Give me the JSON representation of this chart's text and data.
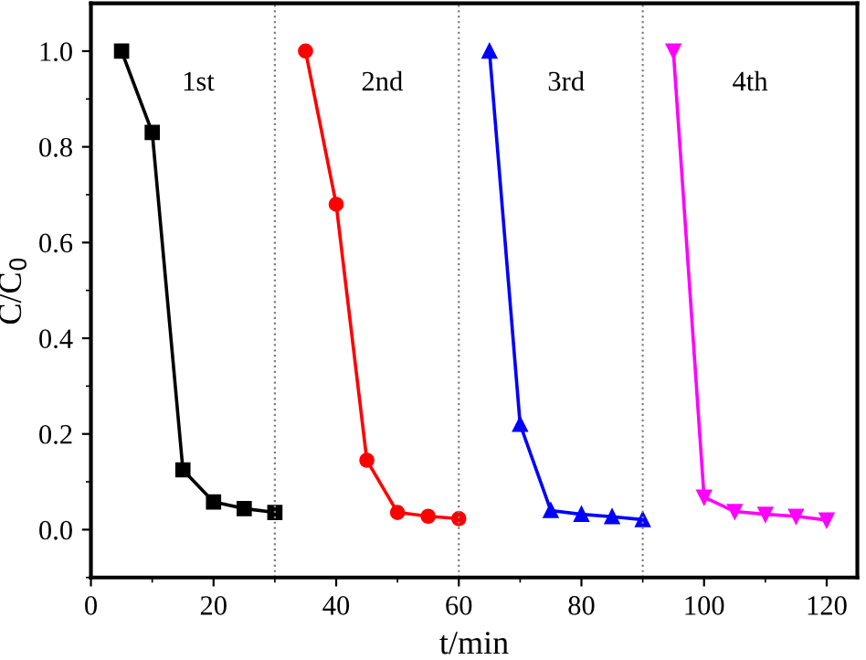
{
  "chart_data": {
    "type": "line",
    "xlabel": "t/min",
    "ylabel": "C/C$_{0}$",
    "xlim": [
      0,
      125
    ],
    "xticks": [
      0,
      20,
      40,
      60,
      80,
      100,
      120
    ],
    "ylim": [
      -0.1,
      1.1
    ],
    "yticks": [
      {
        "value": 0,
        "label": "0.0"
      },
      0.2,
      0.4,
      0.6,
      0.8,
      {
        "value": 1,
        "label": "1.0"
      }
    ],
    "line_style": "solid",
    "grid": false,
    "series": [
      {
        "name": "1st",
        "color": "#000000",
        "marker": "square",
        "x": [
          5,
          10,
          15,
          20,
          25,
          30
        ],
        "values": [
          1.0,
          0.83,
          0.125,
          0.058,
          0.044,
          0.036
        ]
      },
      {
        "name": "2nd",
        "color": "#ff0000",
        "marker": "circle",
        "x": [
          35,
          40,
          45,
          50,
          55,
          60
        ],
        "values": [
          1.0,
          0.68,
          0.145,
          0.036,
          0.028,
          0.023
        ]
      },
      {
        "name": "3rd",
        "color": "#0000ff",
        "marker": "triangle",
        "x": [
          65,
          70,
          75,
          80,
          85,
          90
        ],
        "values": [
          1.0,
          0.22,
          0.04,
          0.032,
          0.027,
          0.021
        ]
      },
      {
        "name": "4th",
        "color": "#ff00ff",
        "marker": "triangle_down",
        "x": [
          95,
          100,
          105,
          110,
          115,
          120
        ],
        "values": [
          1.0,
          0.068,
          0.038,
          0.032,
          0.028,
          0.02
        ]
      }
    ],
    "ref_lines": [
      {
        "axis": "x",
        "value": 30,
        "color": "#808080",
        "line_style": "dotted"
      },
      {
        "axis": "x",
        "value": 60,
        "color": "#808080",
        "line_style": "dotted"
      },
      {
        "axis": "x",
        "value": 90,
        "color": "#808080",
        "line_style": "dotted"
      }
    ]
  }
}
